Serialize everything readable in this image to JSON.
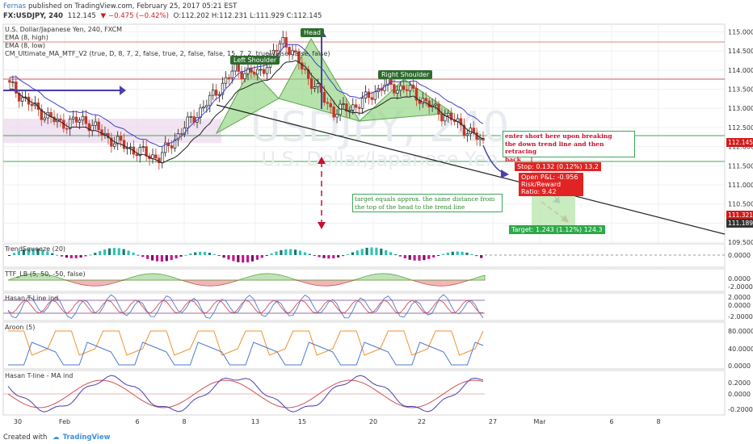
{
  "header": {
    "author": "Fernas",
    "published": "published on TradingView.com, February 25, 2017 05:21 EST",
    "symbol": "FX:USDJPY, 240",
    "last": "112.145",
    "change": "−0.475 (−0.42%)",
    "ohlc": "O:112.202 H:112.231 L:111.929 C:112.145"
  },
  "legend": {
    "title": "U.S. Dollar/Japanese Yen, 240, FXCM",
    "ema_high": "EMA (8, high)",
    "ema_low": "EMA (8, low)",
    "mtf": "CM_Ultimate_MA_MTF_V2 (true, D, 8, 7, 2, false, true, 2, false, false, 15, 7, 2, true, false, false, false)"
  },
  "watermark": {
    "symbol": "USDJPY, 240",
    "name": "U.S. Dollar/Japanese Yen"
  },
  "annotations": {
    "head": "Head",
    "left_shoulder": "Left Shoulder",
    "right_shoulder": "Right Shoulder",
    "entry_note": "enter short here upon breaking\nthe down trend line and then retracing\nback",
    "target_note": "target equals approx. the same distance from\nthe top of the head to the trend line",
    "stop": "Stop: 0.132 (0.12%) 13.2",
    "open_pl": "Open P&L: -0.956",
    "risk_reward": "Risk/Reward Ratio: 9.42",
    "target": "Target: 1.243 (1.12%) 124.3"
  },
  "price_axis": {
    "ticks": [
      "115.000",
      "114.500",
      "114.000",
      "113.500",
      "113.000",
      "112.500",
      "112.000",
      "111.500",
      "111.000",
      "110.500",
      "110.000",
      "109.500"
    ],
    "badges": [
      {
        "label": "112.145",
        "color": "#d01c1c"
      },
      {
        "label": "111.321",
        "color": "#d01c1c"
      },
      {
        "label": "111.189",
        "color": "#333333"
      }
    ]
  },
  "time_axis": {
    "ticks": [
      "30",
      "Feb",
      "6",
      "8",
      "13",
      "15",
      "20",
      "22",
      "27",
      "Mar",
      "6",
      "8"
    ]
  },
  "indicators": [
    {
      "label": "TrendSqueeze (20)",
      "ticks": [
        "0.0000"
      ]
    },
    {
      "label": "TTF_LB (5, 50, -50, false)",
      "ticks": [
        "0.0000",
        "-2.0000"
      ]
    },
    {
      "label": "Hasan T-Line ind",
      "ticks": [
        "2.0000",
        "0.0000",
        "-2.0000"
      ]
    },
    {
      "label": "Aroon (5)",
      "ticks": [
        "80.0000",
        "40.0000",
        "0.0000"
      ]
    },
    {
      "label": "Hasan T-line - MA ind",
      "ticks": [
        "0.2000",
        "0.0000",
        "-0.2000"
      ]
    }
  ],
  "footer": {
    "created_with": "Created with",
    "brand": "TradingView"
  },
  "colors": {
    "up": "#1e1e1e",
    "down": "#c0392b",
    "pattern": "#8fd27f",
    "ema_high": "#4040c8",
    "ema_low": "#202020",
    "blue_arrow": "#4a3fb0",
    "red_arrow": "#c8102e",
    "target_fill": "#bfe8b5",
    "stop_fill": "#f7c6c6"
  },
  "chart_data": {
    "type": "candlestick",
    "title": "U.S. Dollar/Japanese Yen, 240, FXCM",
    "xlabel": "",
    "ylabel": "",
    "ylim": [
      109.5,
      115.2
    ],
    "x_range": [
      "Jan 30",
      "Mar 8"
    ],
    "approx_close_path": [
      {
        "x": "Jan 30",
        "y": 113.6
      },
      {
        "x": "Feb 1",
        "y": 113.0
      },
      {
        "x": "Feb 2",
        "y": 112.6
      },
      {
        "x": "Feb 3",
        "y": 112.7
      },
      {
        "x": "Feb 6",
        "y": 112.2
      },
      {
        "x": "Feb 7",
        "y": 111.9
      },
      {
        "x": "Feb 8",
        "y": 111.7
      },
      {
        "x": "Feb 9",
        "y": 112.5
      },
      {
        "x": "Feb 10",
        "y": 113.2
      },
      {
        "x": "Feb 13",
        "y": 114.0
      },
      {
        "x": "Feb 14",
        "y": 113.9
      },
      {
        "x": "Feb 15",
        "y": 114.8
      },
      {
        "x": "Feb 16",
        "y": 113.8
      },
      {
        "x": "Feb 17",
        "y": 112.9
      },
      {
        "x": "Feb 20",
        "y": 113.1
      },
      {
        "x": "Feb 21",
        "y": 113.6
      },
      {
        "x": "Feb 22",
        "y": 113.5
      },
      {
        "x": "Feb 23",
        "y": 113.0
      },
      {
        "x": "Feb 24",
        "y": 112.6
      },
      {
        "x": "Feb 25",
        "y": 112.1
      }
    ],
    "trend_line": [
      {
        "x": "Feb 13",
        "y": 113.3
      },
      {
        "x": "Mar 8",
        "y": 109.6
      }
    ],
    "levels": [
      113.8,
      112.3,
      111.6
    ],
    "last_price": 112.145,
    "stop": 111.321,
    "target": 111.189,
    "grid": true,
    "legend": "top-left"
  }
}
